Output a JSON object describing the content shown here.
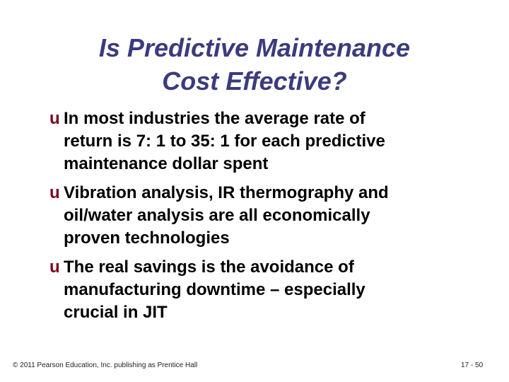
{
  "title": {
    "lines": [
      "Is Predictive Maintenance",
      "Cost Effective?"
    ]
  },
  "bullet_glyph": "u",
  "bullets": [
    {
      "lines": [
        "In most industries the average rate of",
        "return is 7: 1 to 35: 1 for each predictive",
        "maintenance dollar spent"
      ]
    },
    {
      "lines": [
        "Vibration analysis, IR thermography and",
        "oil/water analysis are all economically",
        "proven technologies"
      ]
    },
    {
      "lines": [
        "The real savings is the avoidance of",
        "manufacturing downtime – especially",
        "crucial in JIT"
      ]
    }
  ],
  "footer": {
    "copyright": "© 2011 Pearson Education, Inc. publishing as Prentice Hall",
    "page": "17 - 50"
  }
}
